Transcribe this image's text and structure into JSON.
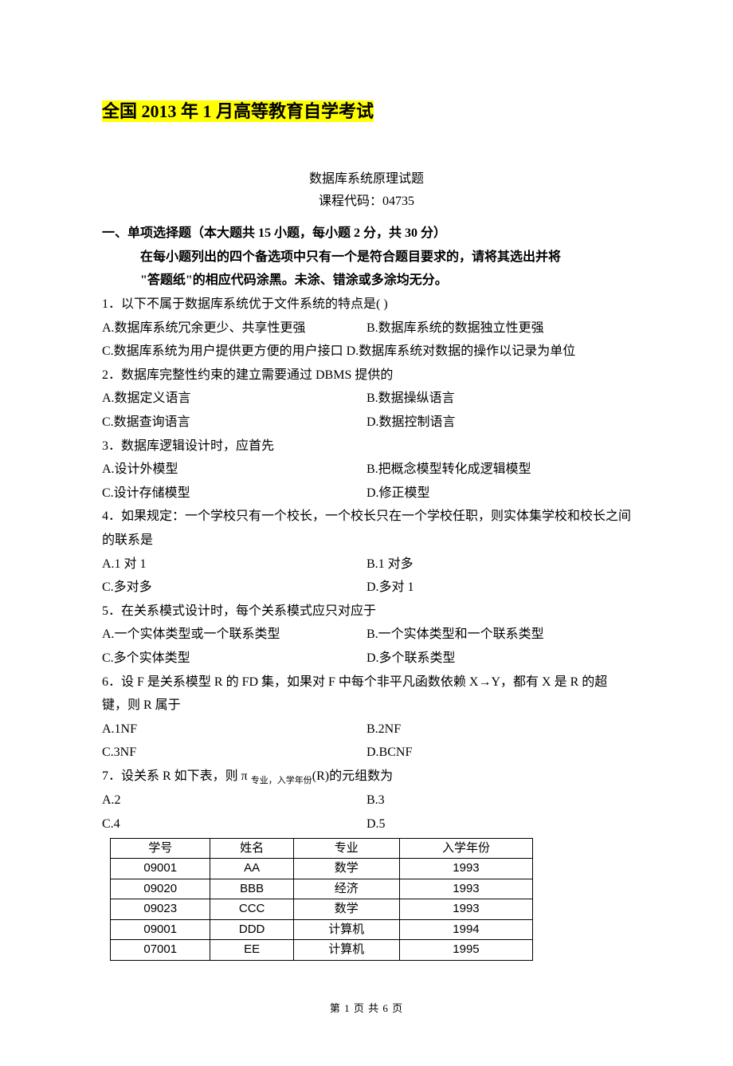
{
  "title": "全国 2013 年 1 月高等教育自学考试",
  "subtitle_line1": "数据库系统原理试题",
  "subtitle_line2": "课程代码：04735",
  "section": {
    "heading": "一、单项选择题（本大题共 15 小题，每小题 2 分，共 30 分）",
    "instr1": "在每小题列出的四个备选项中只有一个是符合题目要求的，请将其选出并将",
    "instr2": "\"答题纸\"的相应代码涂黑。未涂、错涂或多涂均无分。"
  },
  "q1": {
    "stem": "1．以下不属于数据库系统优于文件系统的特点是(   )",
    "a": "A.数据库系统冗余更少、共享性更强",
    "b": "B.数据库系统的数据独立性更强",
    "c_d": "C.数据库系统为用户提供更方便的用户接口 D.数据库系统对数据的操作以记录为单位"
  },
  "q2": {
    "stem": "2．数据库完整性约束的建立需要通过 DBMS 提供的",
    "a": "A.数据定义语言",
    "b": "B.数据操纵语言",
    "c": "C.数据查询语言",
    "d": "D.数据控制语言"
  },
  "q3": {
    "stem": "3．数据库逻辑设计时，应首先",
    "a": "A.设计外模型",
    "b": "B.把概念模型转化成逻辑模型",
    "c": "C.设计存储模型",
    "d": "D.修正模型"
  },
  "q4": {
    "stem": "4．如果规定：一个学校只有一个校长，一个校长只在一个学校任职，则实体集学校和校长之间的联系是",
    "a": "A.1 对 1",
    "b": "B.1 对多",
    "c": "C.多对多",
    "d": "D.多对 1"
  },
  "q5": {
    "stem": "5．在关系模式设计时，每个关系模式应只对应于",
    "a": "A.一个实体类型或一个联系类型",
    "b": "B.一个实体类型和一个联系类型",
    "c": "C.多个实体类型",
    "d": "D.多个联系类型"
  },
  "q6": {
    "stem": "6．设 F 是关系模型 R 的 FD 集，如果对 F 中每个非平凡函数依赖 X→Y，都有 X 是 R 的超键，则 R 属于",
    "a": "A.1NF",
    "b": "B.2NF",
    "c": "C.3NF",
    "d": "D.BCNF"
  },
  "q7": {
    "stem_pre": "7．设关系 R 如下表，则 π ",
    "stem_sub": "专业，入学年份",
    "stem_post": "(R)的元组数为",
    "a": "A.2",
    "b": "B.3",
    "c": "C.4",
    "d": "D.5"
  },
  "table": {
    "headers": {
      "c1": "学号",
      "c2": "姓名",
      "c3": "专业",
      "c4": "入学年份"
    },
    "rows": [
      {
        "c1": "09001",
        "c2": "AA",
        "c3": "数学",
        "c4": "1993"
      },
      {
        "c1": "09020",
        "c2": "BBB",
        "c3": "经济",
        "c4": "1993"
      },
      {
        "c1": "09023",
        "c2": "CCC",
        "c3": "数学",
        "c4": "1993"
      },
      {
        "c1": "09001",
        "c2": "DDD",
        "c3": "计算机",
        "c4": "1994"
      },
      {
        "c1": "07001",
        "c2": "EE",
        "c3": "计算机",
        "c4": "1995"
      }
    ]
  },
  "footer": "第 1 页 共 6 页"
}
